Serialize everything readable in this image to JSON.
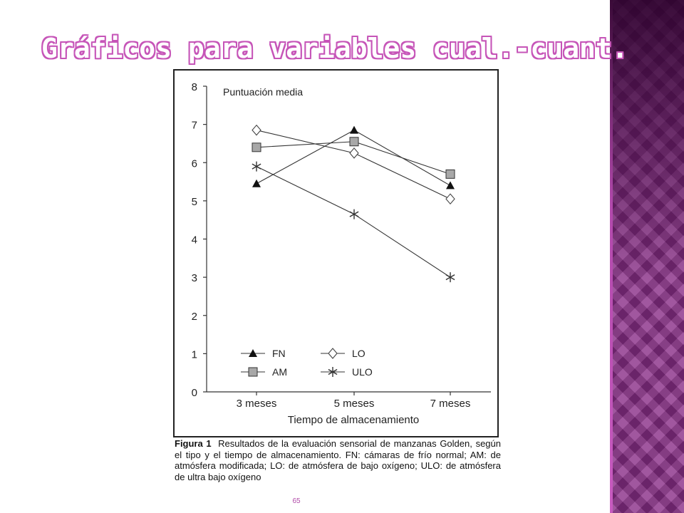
{
  "slide": {
    "title": "Gráficos para variables cual.-cuant.",
    "page_number": "65"
  },
  "figure": {
    "caption_label": "Figura 1",
    "caption_text": "Resultados de la evaluación sensorial de manzanas Golden, según el tipo y el tiempo de almacenamiento. FN: cámaras de frío normal; AM: de atmósfera modificada; LO: de atmósfera de bajo oxígeno; ULO: de atmósfera de ultra bajo oxígeno"
  },
  "colors": {
    "accent": "#c655b8",
    "side_strip": "#8a2f88",
    "line": "#333333",
    "am_marker_fill": "#a8a8a8"
  },
  "chart_data": {
    "type": "line",
    "title": "",
    "ylabel": "Puntuación media",
    "xlabel": "Tiempo de almacenamiento",
    "categories": [
      "3 meses",
      "5 meses",
      "7 meses"
    ],
    "ylim": [
      0,
      8
    ],
    "yticks": [
      0,
      1,
      2,
      3,
      4,
      5,
      6,
      7,
      8
    ],
    "grid": false,
    "legend_position": "bottom-left",
    "series": [
      {
        "name": "FN",
        "marker": "triangle",
        "values": [
          5.45,
          6.85,
          5.4
        ]
      },
      {
        "name": "AM",
        "marker": "square",
        "values": [
          6.4,
          6.55,
          5.7
        ]
      },
      {
        "name": "LO",
        "marker": "diamond",
        "values": [
          6.85,
          6.25,
          5.05
        ]
      },
      {
        "name": "ULO",
        "marker": "asterisk",
        "values": [
          5.9,
          4.65,
          3.0
        ]
      }
    ]
  }
}
